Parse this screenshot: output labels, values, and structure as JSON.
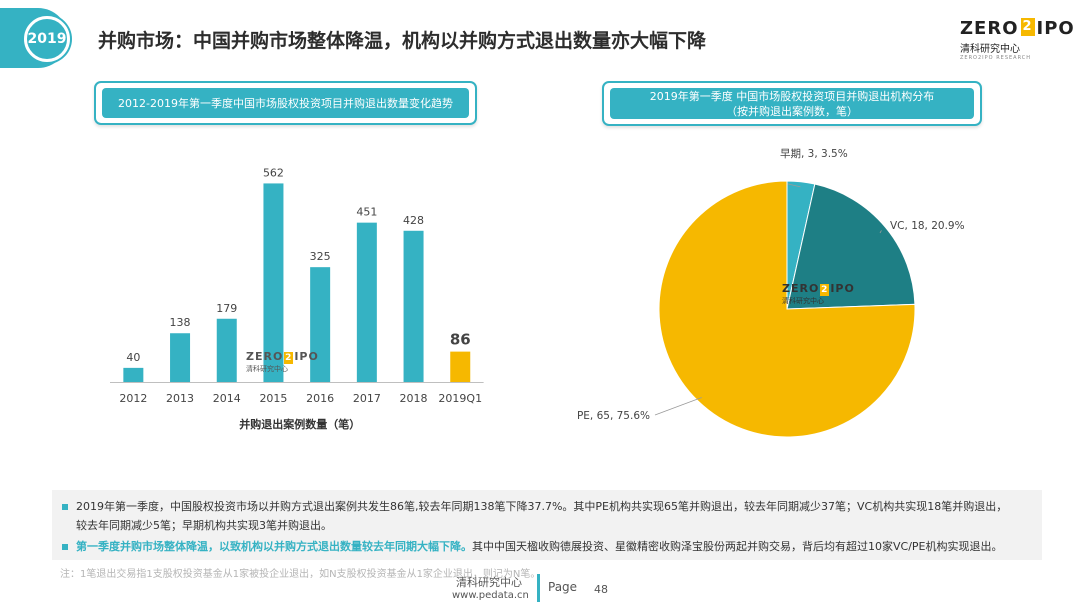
{
  "header": {
    "year": "2019",
    "title": "并购市场：中国并购市场整体降温，机构以并购方式退出数量亦大幅下降",
    "logo_main_left": "ZERO",
    "logo_box": "2",
    "logo_main_right": "IPO",
    "logo_sub": "清科研究中心",
    "logo_tiny": "ZERO2IPO RESEARCH"
  },
  "left_panel": {
    "caption": "2012-2019年第一季度中国市场股权投资项目并购退出数量变化趋势"
  },
  "right_panel": {
    "caption_line1": "2019年第一季度 中国市场股权投资项目并购退出机构分布",
    "caption_line2": "（按并购退出案例数，笔）"
  },
  "watermark": {
    "main_left": "ZERO",
    "box": "2",
    "main_right": "IPO",
    "sub": "清科研究中心"
  },
  "chart_data": [
    {
      "type": "bar",
      "categories": [
        "2012",
        "2013",
        "2014",
        "2015",
        "2016",
        "2017",
        "2018",
        "2019Q1"
      ],
      "values": [
        40,
        138,
        179,
        562,
        325,
        451,
        428,
        86
      ],
      "value_labels": [
        "40",
        "138",
        "179",
        "562",
        "325",
        "451",
        "428",
        "86"
      ],
      "xlabel": "并购退出案例数量（笔）",
      "ylim": [
        0,
        600
      ],
      "grid": false,
      "colors": {
        "default": "#35b2c3",
        "highlight": "#f6b800"
      },
      "highlight_index": 7
    },
    {
      "type": "pie",
      "slices": [
        {
          "name": "早期",
          "value": 3,
          "percent": 3.5,
          "label": "早期, 3, 3.5%",
          "color": "#35b2c3"
        },
        {
          "name": "VC",
          "value": 18,
          "percent": 20.9,
          "label": "VC, 18, 20.9%",
          "color": "#1e7f85"
        },
        {
          "name": "PE",
          "value": 65,
          "percent": 75.6,
          "label": "PE, 65, 75.6%",
          "color": "#f6b800"
        }
      ]
    }
  ],
  "notes": {
    "line1": "2019年第一季度，中国股权投资市场以并购方式退出案例共发生86笔,较去年同期138笔下降37.7%。其中PE机构共实现65笔并购退出，较去年同期减少37笔；VC机构共实现18笔并购退出，",
    "line2": "较去年同期减少5笔；早期机构共实现3笔并购退出。",
    "line3_highlight": "第一季度并购市场整体降温，以致机构以并购方式退出数量较去年同期大幅下降。",
    "line3_rest": "其中中国天楹收购德展投资、星徽精密收购泽宝股份两起并购交易，背后均有超过10家VC/PE机构实现退出。"
  },
  "footnote": "注：1笔退出交易指1支股权投资基金从1家被投企业退出，如N支股权投资基金从1家企业退出，则记为N笔。",
  "footer": {
    "org": "清科研究中心",
    "url": "www.pedata.cn",
    "page_label": "Page",
    "page_number": "48"
  }
}
